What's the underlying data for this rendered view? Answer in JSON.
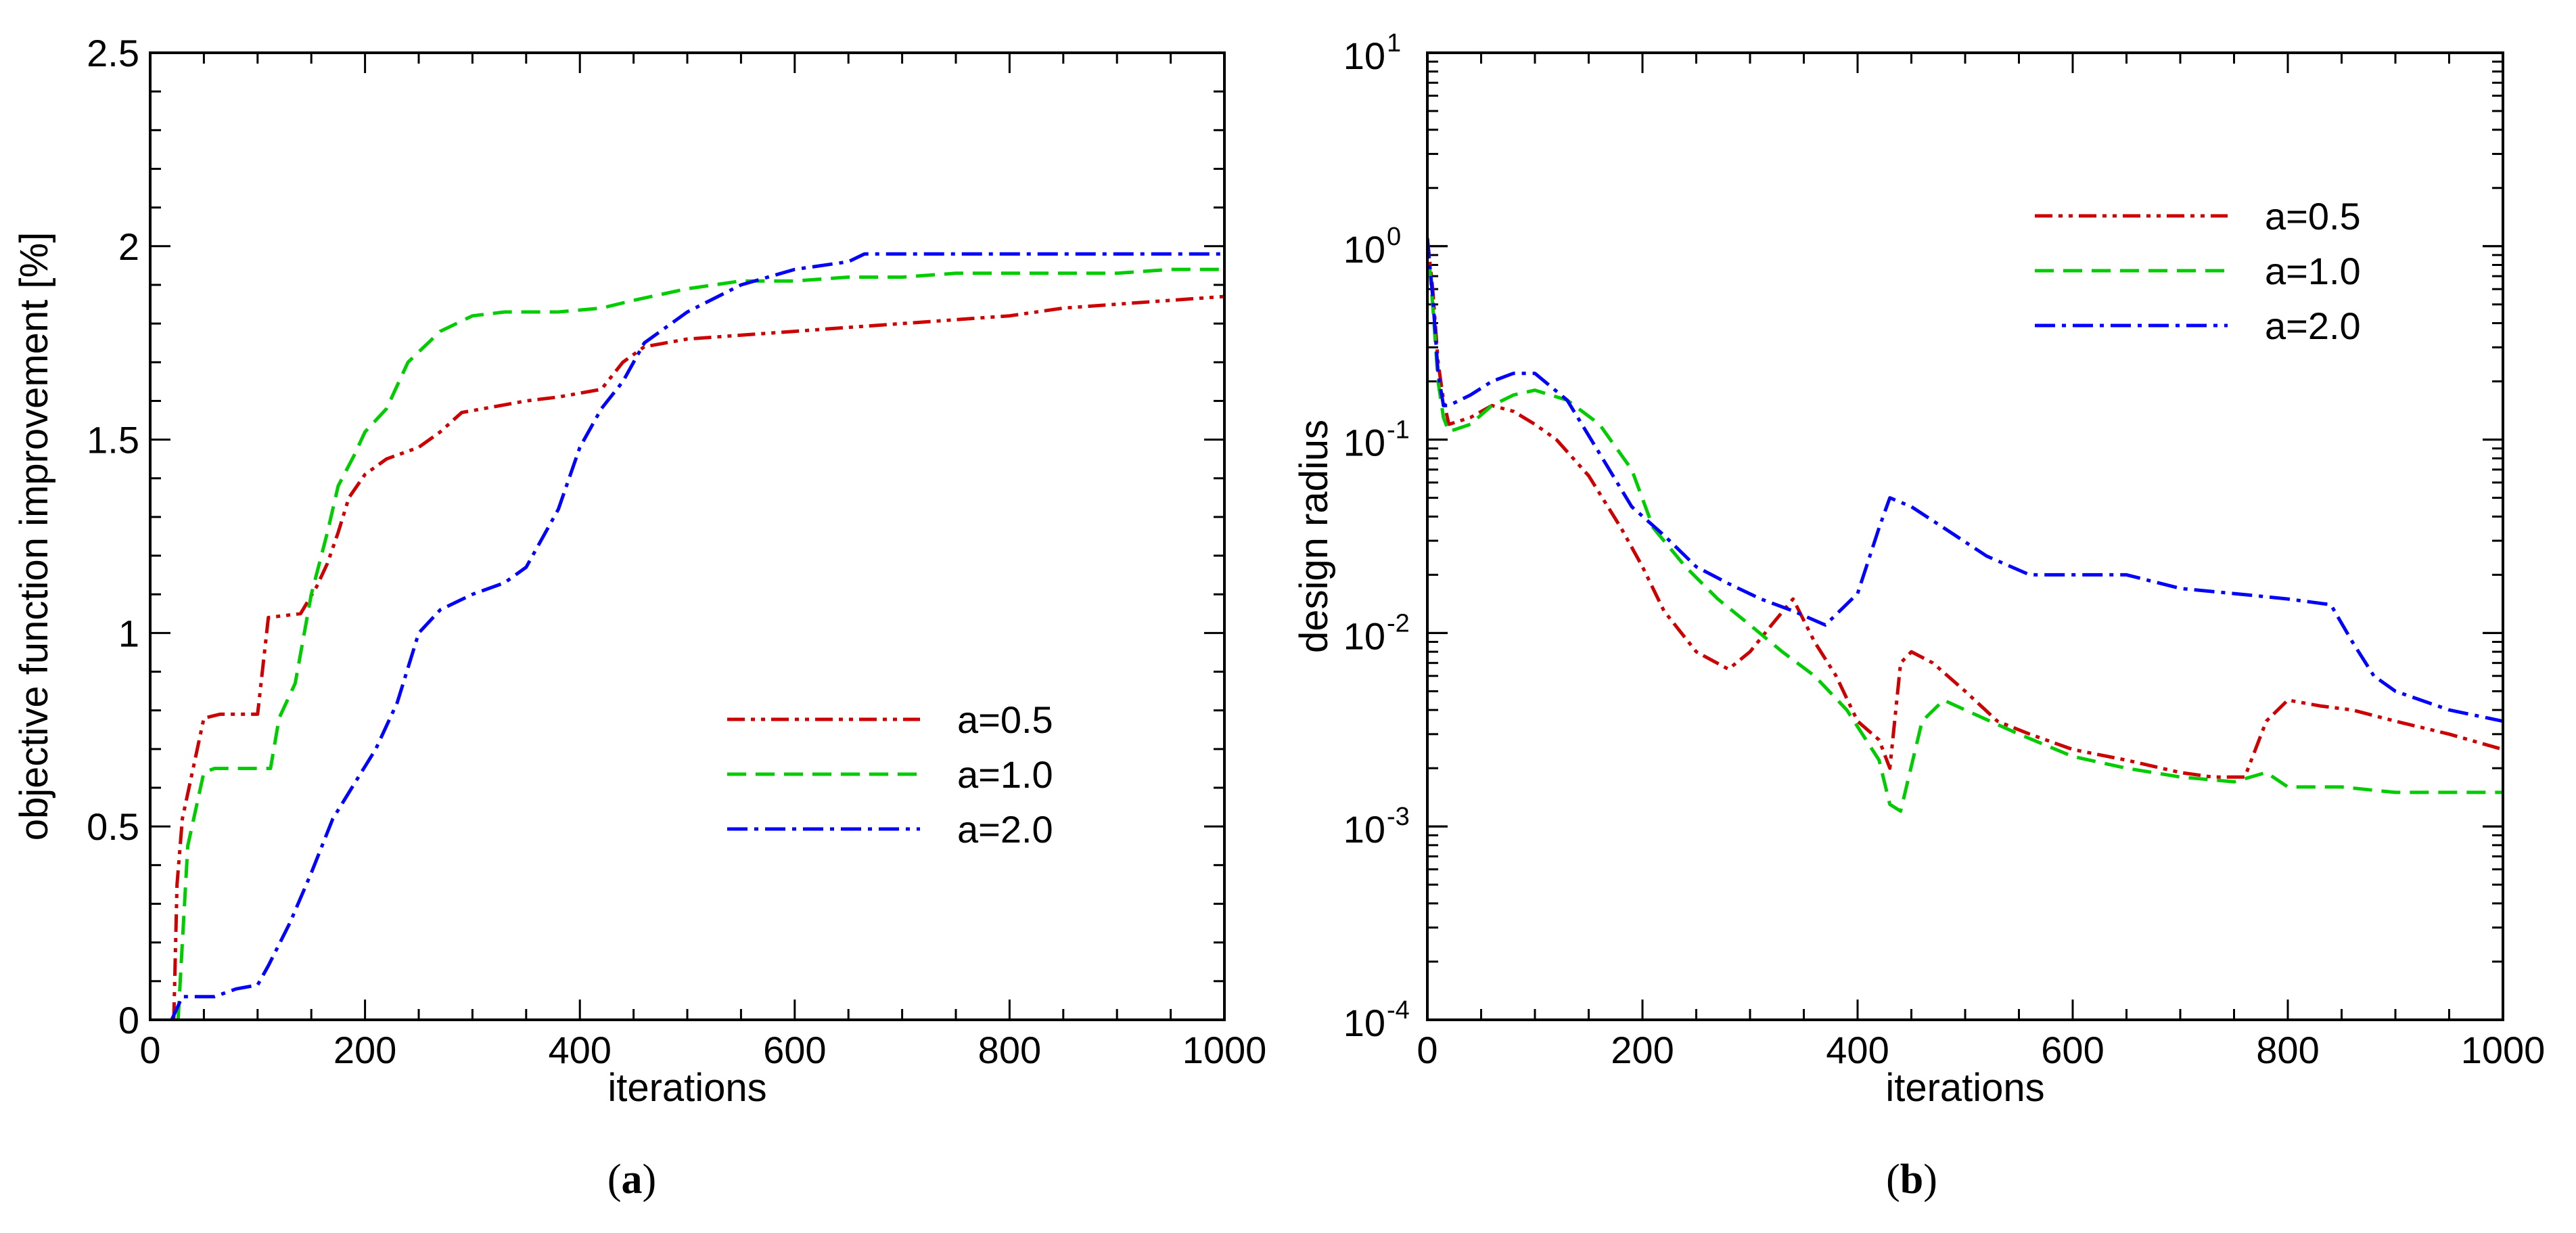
{
  "colors": {
    "a05": "#cc0000",
    "a10": "#00cc00",
    "a20": "#0000ff"
  },
  "chart_data": [
    {
      "type": "line",
      "panel_label": "a",
      "xlabel": "iterations",
      "ylabel": "objective function improvement [%]",
      "xlim": [
        0,
        1000
      ],
      "ylim": [
        0,
        2.5
      ],
      "x_ticks": [
        "0",
        "200",
        "400",
        "600",
        "800",
        "1000"
      ],
      "y_ticks": [
        "0",
        "0.5",
        "1",
        "1.5",
        "2",
        "2.5"
      ],
      "legend_position": "center-right",
      "series": [
        {
          "name": "a=0.5",
          "color": "#cc0000",
          "dash": "dash-dot-dot",
          "x": [
            22,
            25,
            30,
            40,
            50,
            65,
            80,
            100,
            110,
            140,
            155,
            165,
            175,
            185,
            200,
            220,
            250,
            270,
            290,
            310,
            330,
            350,
            380,
            420,
            440,
            460,
            500,
            550,
            600,
            650,
            700,
            750,
            800,
            850,
            900,
            950,
            1000
          ],
          "y": [
            0,
            0.35,
            0.52,
            0.65,
            0.78,
            0.79,
            0.79,
            0.79,
            1.04,
            1.05,
            1.12,
            1.18,
            1.26,
            1.35,
            1.41,
            1.45,
            1.48,
            1.52,
            1.57,
            1.58,
            1.59,
            1.6,
            1.61,
            1.63,
            1.7,
            1.74,
            1.76,
            1.77,
            1.78,
            1.79,
            1.8,
            1.81,
            1.82,
            1.84,
            1.85,
            1.86,
            1.87
          ]
        },
        {
          "name": "a=1.0",
          "color": "#00cc00",
          "dash": "dashed",
          "x": [
            26,
            30,
            35,
            50,
            60,
            80,
            100,
            112,
            120,
            135,
            150,
            165,
            175,
            190,
            200,
            220,
            240,
            270,
            300,
            330,
            380,
            420,
            450,
            500,
            550,
            600,
            650,
            700,
            750,
            800,
            850,
            900,
            950,
            1000
          ],
          "y": [
            0,
            0.2,
            0.45,
            0.64,
            0.65,
            0.65,
            0.65,
            0.65,
            0.78,
            0.87,
            1.1,
            1.26,
            1.38,
            1.46,
            1.52,
            1.58,
            1.7,
            1.78,
            1.82,
            1.83,
            1.83,
            1.84,
            1.86,
            1.89,
            1.91,
            1.91,
            1.92,
            1.92,
            1.93,
            1.93,
            1.93,
            1.93,
            1.94,
            1.94
          ]
        },
        {
          "name": "a=2.0",
          "color": "#0000ff",
          "dash": "dash-dot",
          "x": [
            20,
            30,
            60,
            80,
            100,
            110,
            130,
            150,
            170,
            190,
            210,
            230,
            250,
            270,
            300,
            330,
            350,
            380,
            400,
            420,
            440,
            460,
            500,
            550,
            600,
            650,
            665,
            700,
            750,
            800,
            850,
            900,
            950,
            1000
          ],
          "y": [
            0,
            0.06,
            0.06,
            0.08,
            0.09,
            0.14,
            0.25,
            0.38,
            0.52,
            0.61,
            0.7,
            0.82,
            1.0,
            1.06,
            1.1,
            1.13,
            1.17,
            1.32,
            1.48,
            1.58,
            1.65,
            1.75,
            1.83,
            1.9,
            1.94,
            1.96,
            1.98,
            1.98,
            1.98,
            1.98,
            1.98,
            1.98,
            1.98,
            1.98
          ]
        }
      ]
    },
    {
      "type": "line",
      "panel_label": "b",
      "xlabel": "iterations",
      "ylabel": "design radius",
      "xlim": [
        0,
        1000
      ],
      "yscale": "log",
      "ylim": [
        0.0001,
        10
      ],
      "x_ticks": [
        "0",
        "200",
        "400",
        "600",
        "800",
        "1000"
      ],
      "y_ticks": [
        {
          "base": "10",
          "exp": "1"
        },
        {
          "base": "10",
          "exp": "0"
        },
        {
          "base": "10",
          "exp": "-1"
        },
        {
          "base": "10",
          "exp": "-2"
        },
        {
          "base": "10",
          "exp": "-3"
        },
        {
          "base": "10",
          "exp": "-4"
        }
      ],
      "legend_position": "top-right",
      "series": [
        {
          "name": "a=0.5",
          "color": "#cc0000",
          "dash": "dash-dot-dot",
          "x": [
            0,
            5,
            10,
            15,
            20,
            40,
            60,
            80,
            100,
            120,
            150,
            180,
            200,
            220,
            250,
            280,
            300,
            320,
            340,
            360,
            380,
            400,
            420,
            430,
            440,
            450,
            470,
            500,
            530,
            560,
            600,
            650,
            700,
            730,
            760,
            780,
            800,
            830,
            860,
            900,
            950,
            1000
          ],
          "y": [
            1.1,
            0.6,
            0.25,
            0.16,
            0.12,
            0.13,
            0.15,
            0.14,
            0.12,
            0.1,
            0.065,
            0.035,
            0.022,
            0.013,
            0.008,
            0.0065,
            0.008,
            0.011,
            0.015,
            0.009,
            0.006,
            0.0035,
            0.0028,
            0.002,
            0.007,
            0.008,
            0.007,
            0.005,
            0.0035,
            0.003,
            0.0025,
            0.0022,
            0.0019,
            0.0018,
            0.0018,
            0.0035,
            0.0045,
            0.0042,
            0.004,
            0.0035,
            0.003,
            0.0025
          ]
        },
        {
          "name": "a=1.0",
          "color": "#00cc00",
          "dash": "dashed",
          "x": [
            0,
            5,
            10,
            15,
            20,
            40,
            60,
            80,
            100,
            130,
            160,
            190,
            210,
            240,
            270,
            300,
            330,
            360,
            390,
            420,
            430,
            440,
            460,
            480,
            500,
            550,
            600,
            650,
            700,
            750,
            780,
            800,
            850,
            900,
            950,
            1000
          ],
          "y": [
            1.1,
            0.5,
            0.2,
            0.13,
            0.11,
            0.12,
            0.15,
            0.17,
            0.18,
            0.16,
            0.12,
            0.07,
            0.035,
            0.022,
            0.015,
            0.011,
            0.008,
            0.006,
            0.004,
            0.0022,
            0.0013,
            0.0012,
            0.0035,
            0.0045,
            0.004,
            0.003,
            0.0023,
            0.002,
            0.0018,
            0.0017,
            0.0019,
            0.0016,
            0.0016,
            0.0015,
            0.0015,
            0.0015
          ]
        },
        {
          "name": "a=2.0",
          "color": "#0000ff",
          "dash": "dash-dot",
          "x": [
            0,
            5,
            10,
            15,
            20,
            40,
            60,
            80,
            100,
            130,
            160,
            190,
            220,
            250,
            280,
            310,
            340,
            370,
            400,
            420,
            430,
            450,
            480,
            520,
            560,
            600,
            650,
            700,
            750,
            800,
            840,
            860,
            880,
            900,
            950,
            1000
          ],
          "y": [
            1.1,
            0.55,
            0.22,
            0.15,
            0.15,
            0.17,
            0.2,
            0.22,
            0.22,
            0.16,
            0.085,
            0.045,
            0.032,
            0.022,
            0.018,
            0.015,
            0.013,
            0.011,
            0.016,
            0.035,
            0.05,
            0.045,
            0.035,
            0.025,
            0.02,
            0.02,
            0.02,
            0.017,
            0.016,
            0.015,
            0.014,
            0.009,
            0.006,
            0.005,
            0.004,
            0.0035
          ]
        }
      ]
    }
  ]
}
